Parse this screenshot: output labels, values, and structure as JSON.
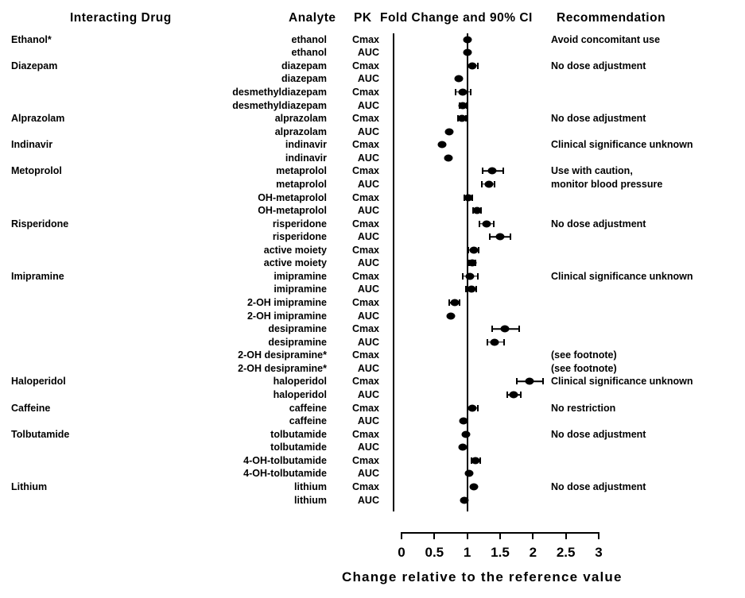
{
  "headers": {
    "interacting_drug": "Interacting Drug",
    "analyte": "Analyte",
    "pk": "PK",
    "fold_change": "Fold Change and 90% CI",
    "recommendation": "Recommendation"
  },
  "colors": {
    "marker": "#000000",
    "text": "#000000",
    "background": "#ffffff"
  },
  "chart_data": {
    "type": "scatter",
    "subtype": "forest-plot-with-90pct-CI",
    "xlabel": "Change relative to the reference value",
    "x_ticks": [
      "0",
      "0.5",
      "1",
      "1.5",
      "2",
      "2.5",
      "3"
    ],
    "xlim": [
      0,
      3
    ],
    "reference_line_x": 1,
    "rows": [
      {
        "drug": "Ethanol*",
        "analyte": "ethanol",
        "pk": "Cmax",
        "value": 1.0,
        "lo": null,
        "hi": null,
        "recommendation": "Avoid concomitant use"
      },
      {
        "drug": "",
        "analyte": "ethanol",
        "pk": "AUC",
        "value": 1.0,
        "lo": null,
        "hi": null,
        "recommendation": ""
      },
      {
        "drug": "Diazepam",
        "analyte": "diazepam",
        "pk": "Cmax",
        "value": 1.08,
        "lo": 1.0,
        "hi": 1.16,
        "recommendation": "No dose adjustment"
      },
      {
        "drug": "",
        "analyte": "diazepam",
        "pk": "AUC",
        "value": 0.87,
        "lo": null,
        "hi": null,
        "recommendation": ""
      },
      {
        "drug": "",
        "analyte": "desmethyldiazepam",
        "pk": "Cmax",
        "value": 0.93,
        "lo": 0.82,
        "hi": 1.05,
        "recommendation": ""
      },
      {
        "drug": "",
        "analyte": "desmethyldiazepam",
        "pk": "AUC",
        "value": 0.93,
        "lo": 0.88,
        "hi": 0.99,
        "recommendation": ""
      },
      {
        "drug": "Alprazolam",
        "analyte": "alprazolam",
        "pk": "Cmax",
        "value": 0.92,
        "lo": 0.86,
        "hi": 0.98,
        "recommendation": "No dose adjustment"
      },
      {
        "drug": "",
        "analyte": "alprazolam",
        "pk": "AUC",
        "value": 0.72,
        "lo": null,
        "hi": null,
        "recommendation": ""
      },
      {
        "drug": "Indinavir",
        "analyte": "indinavir",
        "pk": "Cmax",
        "value": 0.62,
        "lo": null,
        "hi": null,
        "recommendation": "Clinical significance unknown"
      },
      {
        "drug": "",
        "analyte": "indinavir",
        "pk": "AUC",
        "value": 0.71,
        "lo": null,
        "hi": null,
        "recommendation": ""
      },
      {
        "drug": "Metoprolol",
        "analyte": "metaprolol",
        "pk": "Cmax",
        "value": 1.38,
        "lo": 1.23,
        "hi": 1.55,
        "recommendation": "Use with caution,"
      },
      {
        "drug": "",
        "analyte": "metaprolol",
        "pk": "AUC",
        "value": 1.33,
        "lo": 1.22,
        "hi": 1.42,
        "recommendation": "monitor blood pressure"
      },
      {
        "drug": "",
        "analyte": "OH-metaprolol",
        "pk": "Cmax",
        "value": 1.02,
        "lo": 0.96,
        "hi": 1.08,
        "recommendation": ""
      },
      {
        "drug": "",
        "analyte": "OH-metaprolol",
        "pk": "AUC",
        "value": 1.15,
        "lo": 1.09,
        "hi": 1.21,
        "recommendation": ""
      },
      {
        "drug": "Risperidone",
        "analyte": "risperidone",
        "pk": "Cmax",
        "value": 1.29,
        "lo": 1.18,
        "hi": 1.4,
        "recommendation": "No dose adjustment"
      },
      {
        "drug": "",
        "analyte": "risperidone",
        "pk": "AUC",
        "value": 1.5,
        "lo": 1.34,
        "hi": 1.66,
        "recommendation": ""
      },
      {
        "drug": "",
        "analyte": "active moiety",
        "pk": "Cmax",
        "value": 1.1,
        "lo": 1.02,
        "hi": 1.17,
        "recommendation": ""
      },
      {
        "drug": "",
        "analyte": "active moiety",
        "pk": "AUC",
        "value": 1.08,
        "lo": 1.03,
        "hi": 1.13,
        "recommendation": ""
      },
      {
        "drug": "Imipramine",
        "analyte": "imipramine",
        "pk": "Cmax",
        "value": 1.04,
        "lo": 0.93,
        "hi": 1.16,
        "recommendation": "Clinical significance unknown"
      },
      {
        "drug": "",
        "analyte": "imipramine",
        "pk": "AUC",
        "value": 1.06,
        "lo": 0.98,
        "hi": 1.14,
        "recommendation": ""
      },
      {
        "drug": "",
        "analyte": "2-OH imipramine",
        "pk": "Cmax",
        "value": 0.81,
        "lo": 0.73,
        "hi": 0.88,
        "recommendation": ""
      },
      {
        "drug": "",
        "analyte": "2-OH imipramine",
        "pk": "AUC",
        "value": 0.75,
        "lo": null,
        "hi": null,
        "recommendation": ""
      },
      {
        "drug": "",
        "analyte": "desipramine",
        "pk": "Cmax",
        "value": 1.57,
        "lo": 1.38,
        "hi": 1.79,
        "recommendation": ""
      },
      {
        "drug": "",
        "analyte": "desipramine",
        "pk": "AUC",
        "value": 1.42,
        "lo": 1.31,
        "hi": 1.56,
        "recommendation": ""
      },
      {
        "drug": "",
        "analyte": "2-OH desipramine*",
        "pk": "Cmax",
        "value": null,
        "lo": null,
        "hi": null,
        "recommendation": "(see footnote)"
      },
      {
        "drug": "",
        "analyte": "2-OH desipramine*",
        "pk": "AUC",
        "value": null,
        "lo": null,
        "hi": null,
        "recommendation": "(see footnote)"
      },
      {
        "drug": "Haloperidol",
        "analyte": "haloperidol",
        "pk": "Cmax",
        "value": 1.95,
        "lo": 1.75,
        "hi": 2.15,
        "recommendation": "Clinical significance unknown"
      },
      {
        "drug": "",
        "analyte": "haloperidol",
        "pk": "AUC",
        "value": 1.71,
        "lo": 1.61,
        "hi": 1.81,
        "recommendation": ""
      },
      {
        "drug": "Caffeine",
        "analyte": "caffeine",
        "pk": "Cmax",
        "value": 1.08,
        "lo": 1.0,
        "hi": 1.16,
        "recommendation": "No restriction"
      },
      {
        "drug": "",
        "analyte": "caffeine",
        "pk": "AUC",
        "value": 0.94,
        "lo": null,
        "hi": null,
        "recommendation": ""
      },
      {
        "drug": "Tolbutamide",
        "analyte": "tolbutamide",
        "pk": "Cmax",
        "value": 0.98,
        "lo": null,
        "hi": null,
        "recommendation": "No dose adjustment"
      },
      {
        "drug": "",
        "analyte": "tolbutamide",
        "pk": "AUC",
        "value": 0.93,
        "lo": null,
        "hi": null,
        "recommendation": ""
      },
      {
        "drug": "",
        "analyte": "4-OH-tolbutamide",
        "pk": "Cmax",
        "value": 1.12,
        "lo": 1.06,
        "hi": 1.2,
        "recommendation": ""
      },
      {
        "drug": "",
        "analyte": "4-OH-tolbutamide",
        "pk": "AUC",
        "value": 1.03,
        "lo": null,
        "hi": null,
        "recommendation": ""
      },
      {
        "drug": "Lithium",
        "analyte": "lithium",
        "pk": "Cmax",
        "value": 1.1,
        "lo": null,
        "hi": null,
        "recommendation": "No dose adjustment"
      },
      {
        "drug": "",
        "analyte": "lithium",
        "pk": "AUC",
        "value": 0.95,
        "lo": null,
        "hi": null,
        "recommendation": ""
      }
    ]
  }
}
